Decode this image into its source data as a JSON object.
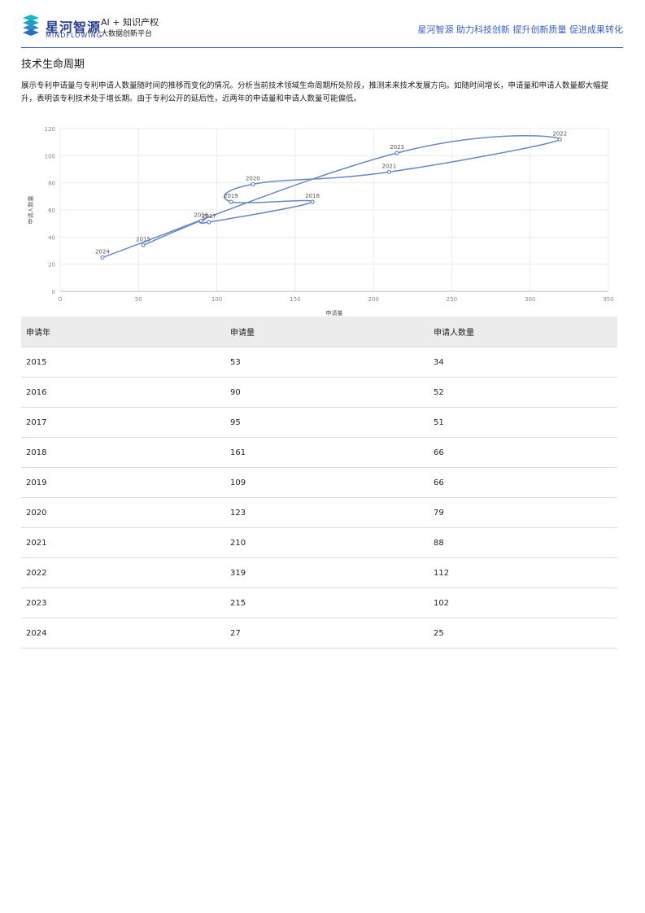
{
  "header": {
    "brand_cn": "星河智源",
    "brand_en": "MINDFLOWING",
    "ai_title": "AI + 知识产权",
    "ai_sub": "大数据创新平台",
    "slogan": "星河智源 助力科技创新 提升创新质量 促进成果转化"
  },
  "section": {
    "title": "技术生命周期",
    "description": "展示专利申请量与专利申请人数量随时间的推移而变化的情况。分析当前技术领域生命周期所处阶段，推测未来技术发展方向。如随时间增长，申请量和申请人数量都大幅提升，表明该专利技术处于增长期。由于专利公开的延后性，近两年的申请量和申请人数量可能偏低。"
  },
  "chart_data": {
    "type": "line",
    "xlabel": "申请量",
    "ylabel": "申请人数量",
    "xlim": [
      0,
      350
    ],
    "ylim": [
      0,
      120
    ],
    "xticks": [
      0,
      50,
      100,
      150,
      200,
      250,
      300,
      350
    ],
    "yticks": [
      0,
      20,
      40,
      60,
      80,
      100,
      120
    ],
    "grid": true,
    "color": "#6b86c4",
    "points": [
      {
        "label": "2015",
        "x": 53,
        "y": 34
      },
      {
        "label": "2016",
        "x": 90,
        "y": 52
      },
      {
        "label": "2017",
        "x": 95,
        "y": 51
      },
      {
        "label": "2018",
        "x": 161,
        "y": 66
      },
      {
        "label": "2019",
        "x": 109,
        "y": 66
      },
      {
        "label": "2020",
        "x": 123,
        "y": 79
      },
      {
        "label": "2021",
        "x": 210,
        "y": 88
      },
      {
        "label": "2022",
        "x": 319,
        "y": 112
      },
      {
        "label": "2023",
        "x": 215,
        "y": 102
      },
      {
        "label": "2024",
        "x": 27,
        "y": 25
      }
    ]
  },
  "table": {
    "headers": [
      "申请年",
      "申请量",
      "申请人数量"
    ],
    "rows": [
      [
        "2015",
        "53",
        "34"
      ],
      [
        "2016",
        "90",
        "52"
      ],
      [
        "2017",
        "95",
        "51"
      ],
      [
        "2018",
        "161",
        "66"
      ],
      [
        "2019",
        "109",
        "66"
      ],
      [
        "2020",
        "123",
        "79"
      ],
      [
        "2021",
        "210",
        "88"
      ],
      [
        "2022",
        "319",
        "112"
      ],
      [
        "2023",
        "215",
        "102"
      ],
      [
        "2024",
        "27",
        "25"
      ]
    ]
  }
}
